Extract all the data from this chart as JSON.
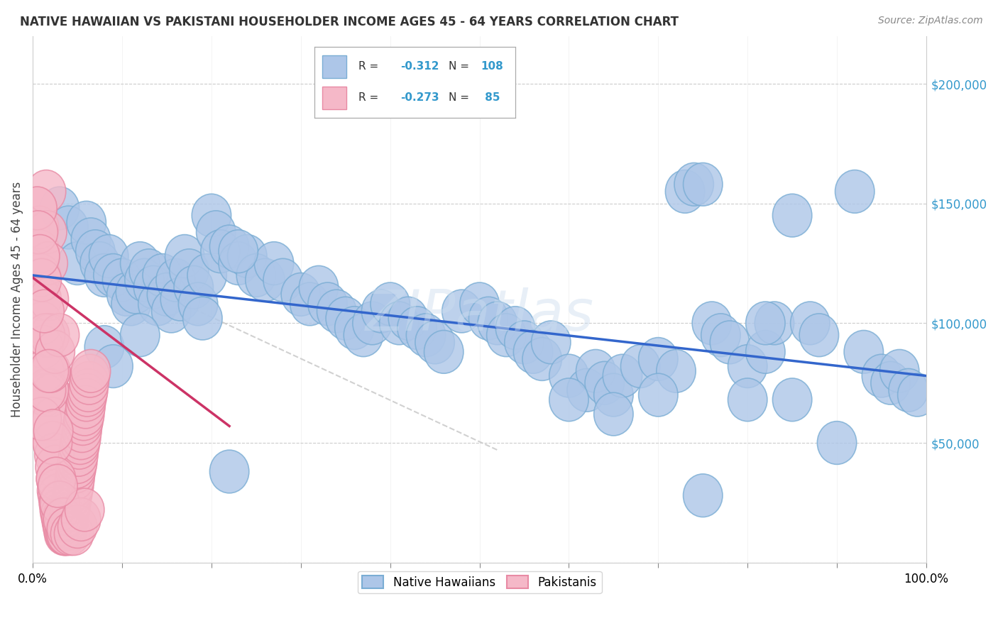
{
  "title": "NATIVE HAWAIIAN VS PAKISTANI HOUSEHOLDER INCOME AGES 45 - 64 YEARS CORRELATION CHART",
  "source": "Source: ZipAtlas.com",
  "ylabel": "Householder Income Ages 45 - 64 years",
  "xlim": [
    0,
    1.0
  ],
  "ylim": [
    0,
    220000
  ],
  "yticks": [
    0,
    50000,
    100000,
    150000,
    200000
  ],
  "background_color": "#ffffff",
  "grid_color": "#cccccc",
  "blue_marker_face": "#adc6e8",
  "blue_marker_edge": "#7aadd4",
  "pink_marker_face": "#f5b8c8",
  "pink_marker_edge": "#e88aa4",
  "trend_blue": "#3366cc",
  "trend_pink": "#cc3366",
  "trend_gray": "#cccccc",
  "label_native": "Native Hawaiians",
  "label_pakistani": "Pakistanis",
  "watermark": "ZIPatlas",
  "blue_trend": [
    0.0,
    120000,
    1.0,
    78000
  ],
  "pink_trend": [
    0.0,
    119000,
    0.22,
    57000
  ],
  "gray_dash": [
    0.18,
    106000,
    0.52,
    47000
  ],
  "blue_points_x": [
    0.03,
    0.04,
    0.05,
    0.06,
    0.065,
    0.07,
    0.075,
    0.08,
    0.085,
    0.09,
    0.1,
    0.105,
    0.11,
    0.115,
    0.12,
    0.125,
    0.13,
    0.135,
    0.14,
    0.145,
    0.15,
    0.155,
    0.16,
    0.165,
    0.17,
    0.175,
    0.18,
    0.185,
    0.19,
    0.195,
    0.2,
    0.205,
    0.21,
    0.22,
    0.23,
    0.24,
    0.25,
    0.26,
    0.27,
    0.28,
    0.3,
    0.31,
    0.32,
    0.33,
    0.34,
    0.35,
    0.36,
    0.37,
    0.38,
    0.39,
    0.4,
    0.41,
    0.42,
    0.43,
    0.44,
    0.45,
    0.46,
    0.48,
    0.5,
    0.51,
    0.52,
    0.53,
    0.54,
    0.55,
    0.56,
    0.57,
    0.58,
    0.6,
    0.62,
    0.63,
    0.64,
    0.65,
    0.66,
    0.68,
    0.7,
    0.72,
    0.73,
    0.74,
    0.75,
    0.76,
    0.77,
    0.78,
    0.8,
    0.82,
    0.83,
    0.85,
    0.87,
    0.88,
    0.9,
    0.92,
    0.93,
    0.95,
    0.96,
    0.97,
    0.98,
    0.99,
    0.08,
    0.09,
    0.12,
    0.75,
    0.6,
    0.65,
    0.7,
    0.8,
    0.85,
    0.22,
    0.82,
    0.23
  ],
  "blue_points_y": [
    148000,
    140000,
    125000,
    142000,
    135000,
    130000,
    125000,
    120000,
    128000,
    120000,
    118000,
    112000,
    108000,
    113000,
    125000,
    118000,
    122000,
    115000,
    108000,
    120000,
    112000,
    105000,
    118000,
    110000,
    128000,
    122000,
    115000,
    108000,
    102000,
    120000,
    145000,
    138000,
    130000,
    132000,
    125000,
    128000,
    120000,
    118000,
    125000,
    118000,
    112000,
    108000,
    115000,
    108000,
    105000,
    102000,
    98000,
    95000,
    100000,
    105000,
    108000,
    100000,
    102000,
    98000,
    95000,
    92000,
    88000,
    105000,
    108000,
    102000,
    100000,
    95000,
    98000,
    92000,
    88000,
    85000,
    92000,
    78000,
    72000,
    80000,
    75000,
    70000,
    78000,
    82000,
    85000,
    80000,
    155000,
    158000,
    158000,
    100000,
    95000,
    92000,
    82000,
    88000,
    100000,
    145000,
    100000,
    95000,
    50000,
    155000,
    88000,
    78000,
    75000,
    80000,
    72000,
    70000,
    90000,
    82000,
    95000,
    28000,
    68000,
    62000,
    70000,
    68000,
    68000,
    38000,
    100000,
    130000
  ],
  "pink_points_x": [
    0.005,
    0.007,
    0.008,
    0.009,
    0.01,
    0.011,
    0.012,
    0.013,
    0.014,
    0.015,
    0.016,
    0.017,
    0.018,
    0.019,
    0.02,
    0.021,
    0.022,
    0.023,
    0.024,
    0.025,
    0.026,
    0.027,
    0.028,
    0.029,
    0.03,
    0.031,
    0.032,
    0.033,
    0.034,
    0.035,
    0.036,
    0.037,
    0.038,
    0.039,
    0.04,
    0.041,
    0.042,
    0.043,
    0.044,
    0.045,
    0.046,
    0.047,
    0.048,
    0.049,
    0.05,
    0.051,
    0.052,
    0.053,
    0.054,
    0.055,
    0.056,
    0.057,
    0.058,
    0.059,
    0.06,
    0.061,
    0.062,
    0.063,
    0.064,
    0.065,
    0.005,
    0.006,
    0.01,
    0.014,
    0.018,
    0.022,
    0.026,
    0.03,
    0.034,
    0.038,
    0.042,
    0.046,
    0.05,
    0.054,
    0.058,
    0.01,
    0.015,
    0.02,
    0.025,
    0.03,
    0.008,
    0.013,
    0.018,
    0.023,
    0.028
  ],
  "pink_points_y": [
    148000,
    140000,
    130000,
    120000,
    110000,
    100000,
    90000,
    80000,
    70000,
    155000,
    138000,
    125000,
    110000,
    95000,
    80000,
    70000,
    60000,
    50000,
    45000,
    40000,
    35000,
    30000,
    28000,
    25000,
    22000,
    20000,
    18000,
    16000,
    14000,
    12000,
    12000,
    12000,
    12000,
    15000,
    18000,
    20000,
    22000,
    25000,
    28000,
    30000,
    32000,
    35000,
    38000,
    40000,
    42000,
    45000,
    48000,
    50000,
    52000,
    55000,
    58000,
    60000,
    62000,
    65000,
    68000,
    70000,
    72000,
    75000,
    78000,
    80000,
    148000,
    138000,
    118000,
    95000,
    72000,
    50000,
    35000,
    25000,
    18000,
    14000,
    12000,
    12000,
    15000,
    18000,
    22000,
    60000,
    72000,
    80000,
    88000,
    95000,
    128000,
    105000,
    80000,
    55000,
    32000
  ]
}
